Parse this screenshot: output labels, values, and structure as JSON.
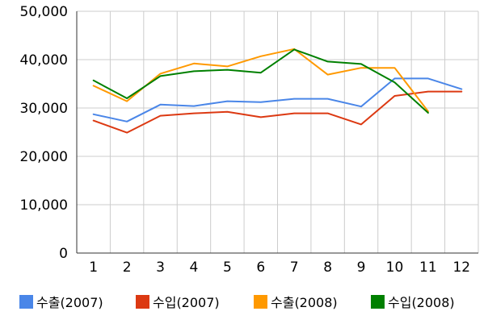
{
  "chart_data": {
    "type": "line",
    "title": "",
    "xlabel": "",
    "ylabel": "",
    "categories": [
      "1",
      "2",
      "3",
      "4",
      "5",
      "6",
      "7",
      "8",
      "9",
      "10",
      "11",
      "12"
    ],
    "ylim": [
      0,
      50000
    ],
    "yticks": [
      "0",
      "10,000",
      "20,000",
      "30,000",
      "40,000",
      "50,000"
    ],
    "ytick_values": [
      0,
      10000,
      20000,
      30000,
      40000,
      50000
    ],
    "grid": true,
    "legend_position": "bottom",
    "series": [
      {
        "name": "수출(2007)",
        "color": "#4a86e8",
        "values": [
          28700,
          27200,
          30700,
          30400,
          31400,
          31200,
          31900,
          31900,
          30300,
          36100,
          36100,
          33900
        ]
      },
      {
        "name": "수입(2007)",
        "color": "#dc3912",
        "values": [
          27400,
          24900,
          28400,
          28900,
          29200,
          28100,
          28900,
          28900,
          26600,
          32500,
          33400,
          33400
        ]
      },
      {
        "name": "수출(2008)",
        "color": "#ff9900",
        "values": [
          34600,
          31400,
          37100,
          39200,
          38600,
          40700,
          42200,
          36900,
          38300,
          38300,
          29300,
          null
        ]
      },
      {
        "name": "수입(2008)",
        "color": "#008000",
        "values": [
          35700,
          32000,
          36600,
          37600,
          37900,
          37300,
          42100,
          39600,
          39100,
          35300,
          29000,
          null
        ]
      }
    ]
  }
}
